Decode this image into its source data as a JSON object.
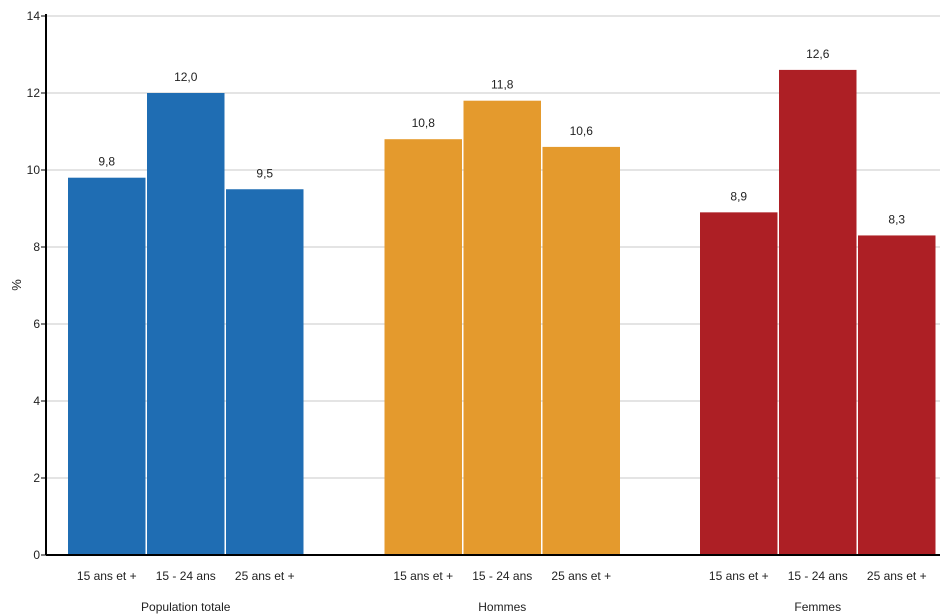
{
  "chart_data": {
    "type": "bar",
    "ylabel": "%",
    "ylim": [
      0,
      14
    ],
    "yticks": [
      "0",
      "2",
      "4",
      "6",
      "8",
      "10",
      "12",
      "14"
    ],
    "grid": true,
    "categories": [
      "15 ans et +",
      "15 - 24 ans",
      "25 ans et +"
    ],
    "groups": [
      {
        "name": "Population totale",
        "color": "#1f6db3",
        "values": [
          9.8,
          12.0,
          9.5
        ],
        "labels": [
          "9,8",
          "12,0",
          "9,5"
        ]
      },
      {
        "name": "Hommes",
        "color": "#e49a2d",
        "values": [
          10.8,
          11.8,
          10.6
        ],
        "labels": [
          "10,8",
          "11,8",
          "10,6"
        ]
      },
      {
        "name": "Femmes",
        "color": "#ad1f25",
        "values": [
          8.9,
          12.6,
          8.3
        ],
        "labels": [
          "8,9",
          "12,6",
          "8,3"
        ]
      }
    ]
  }
}
